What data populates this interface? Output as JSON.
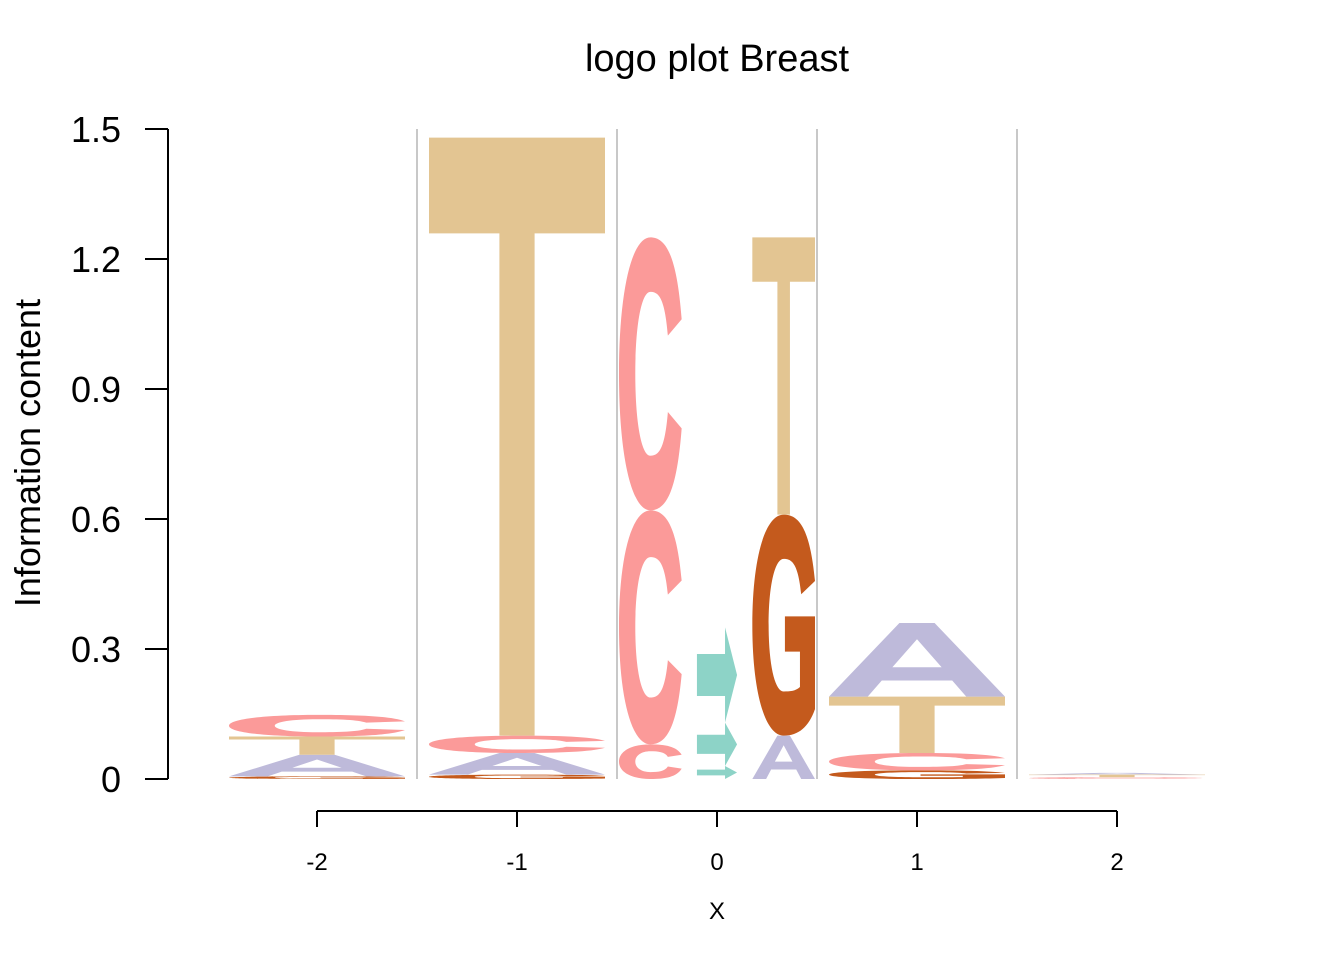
{
  "chart_data": {
    "type": "sequence-logo",
    "title": "logo plot Breast",
    "xlabel": "X",
    "ylabel": "Information content",
    "ylim": [
      0,
      1.5
    ],
    "y_ticks": [
      "0",
      "0.3",
      "0.6",
      "0.9",
      "1.2",
      "1.5"
    ],
    "y_tick_values": [
      0,
      0.3,
      0.6,
      0.9,
      1.2,
      1.5
    ],
    "x_ticks": [
      "-2",
      "-1",
      "0",
      "1",
      "2"
    ],
    "x_tick_values": [
      -2,
      -1,
      0,
      1,
      2
    ],
    "grid": "vertical separators between positions",
    "letter_colors": {
      "C": "#fb9a99",
      "T": "#e3c592",
      "A": "#bebada",
      "G": "#c45a1d",
      ">": "#8dd3c7"
    },
    "columns": [
      {
        "group": "-2",
        "stacks": [
          {
            "letters": [
              {
                "letter": "G",
                "height": 0.006
              },
              {
                "letter": "A",
                "height": 0.05
              },
              {
                "letter": "T",
                "height": 0.042
              },
              {
                "letter": "C",
                "height": 0.05
              }
            ]
          }
        ]
      },
      {
        "group": "-1",
        "stacks": [
          {
            "letters": [
              {
                "letter": "G",
                "height": 0.01
              },
              {
                "letter": "A",
                "height": 0.05
              },
              {
                "letter": "C",
                "height": 0.04
              },
              {
                "letter": "T",
                "height": 1.38
              }
            ]
          }
        ]
      },
      {
        "group": "0",
        "stacks": [
          {
            "letters": [
              {
                "letter": "C",
                "height": 0.08
              },
              {
                "letter": "C",
                "height": 0.54
              },
              {
                "letter": "C",
                "height": 0.63
              }
            ]
          },
          {
            "letters": [
              {
                "letter": ">",
                "height": 0.03
              },
              {
                "letter": ">",
                "height": 0.1
              },
              {
                "letter": ">",
                "height": 0.22
              }
            ]
          },
          {
            "letters": [
              {
                "letter": "A",
                "height": 0.1
              },
              {
                "letter": "G",
                "height": 0.51
              },
              {
                "letter": "T",
                "height": 0.64
              }
            ]
          }
        ]
      },
      {
        "group": "1",
        "stacks": [
          {
            "letters": [
              {
                "letter": "G",
                "height": 0.02
              },
              {
                "letter": "C",
                "height": 0.04
              },
              {
                "letter": "T",
                "height": 0.13
              },
              {
                "letter": "A",
                "height": 0.17
              }
            ]
          }
        ]
      },
      {
        "group": "2",
        "stacks": [
          {
            "letters": [
              {
                "letter": "C",
                "height": 0.004
              },
              {
                "letter": "T",
                "height": 0.006
              },
              {
                "letter": "A",
                "height": 0.004
              }
            ]
          }
        ]
      }
    ]
  }
}
